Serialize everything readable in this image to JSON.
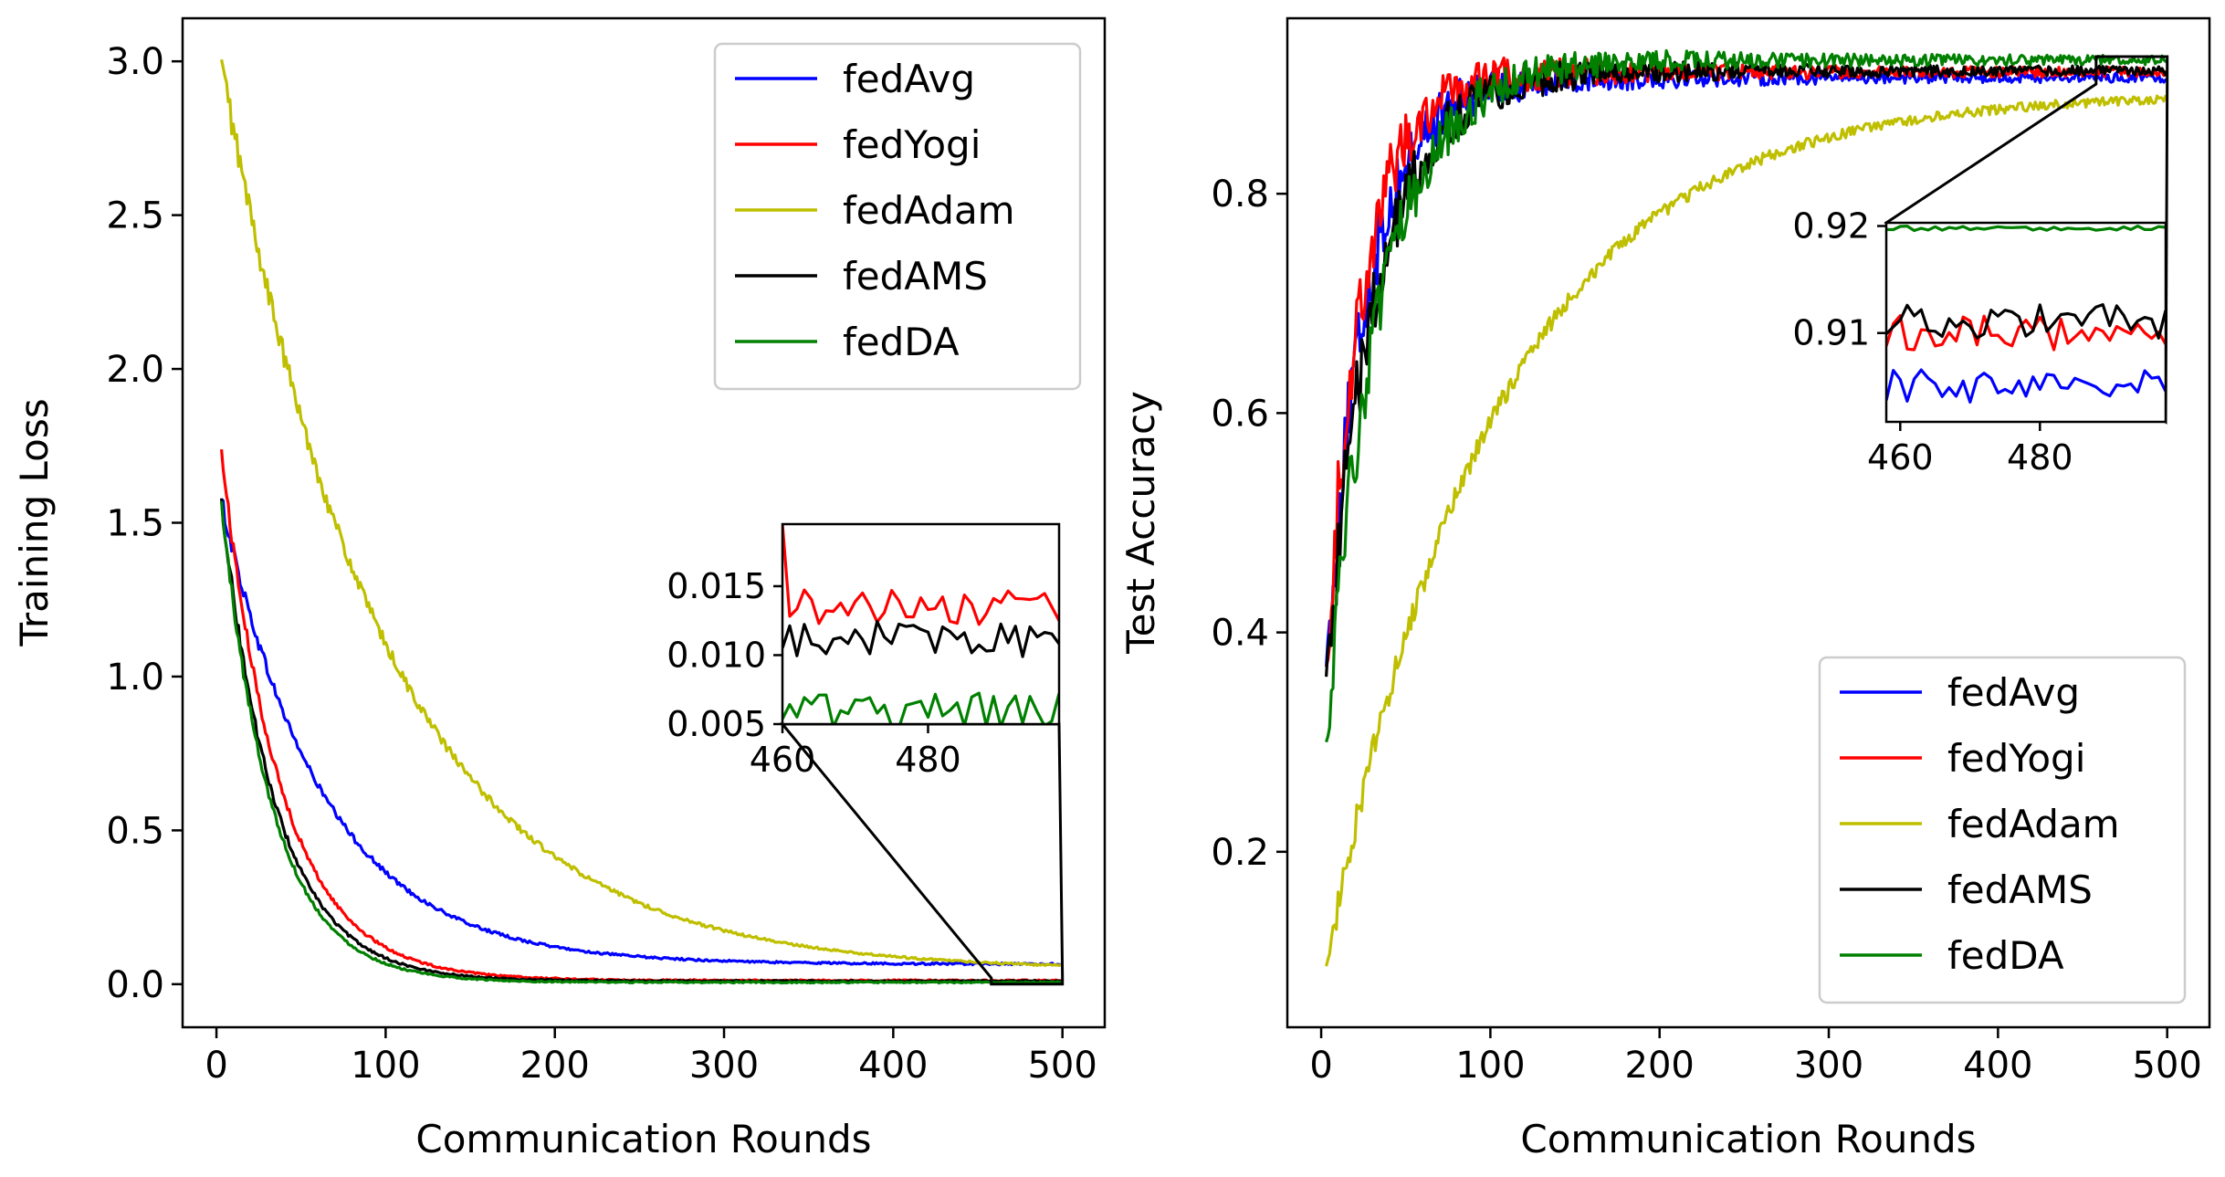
{
  "chart_data": [
    {
      "type": "line",
      "xlabel": "Communication Rounds",
      "ylabel": "Training Loss",
      "xlim": [
        -20,
        525
      ],
      "ylim": [
        -0.14,
        3.14
      ],
      "xticks": [
        "0",
        "100",
        "200",
        "300",
        "400",
        "500"
      ],
      "yticks": [
        "0.0",
        "0.5",
        "1.0",
        "1.5",
        "2.0",
        "2.5",
        "3.0"
      ],
      "legend_position": "top-right",
      "x_range": [
        3,
        500
      ],
      "series": [
        {
          "name": "fedAvg",
          "color": "#0000ff",
          "start": 1.57,
          "end": 0.065,
          "tau": 60
        },
        {
          "name": "fedYogi",
          "color": "#ff0000",
          "start": 1.73,
          "end": 0.012,
          "tau": 35
        },
        {
          "name": "fedAdam",
          "color": "#bfbf00",
          "start": 2.99,
          "end": 0.045,
          "tau": 95
        },
        {
          "name": "fedAMS",
          "color": "#000000",
          "start": 1.57,
          "end": 0.01,
          "tau": 32
        },
        {
          "name": "fedDA",
          "color": "#008000",
          "start": 1.56,
          "end": 0.006,
          "tau": 30
        }
      ],
      "inset": {
        "xlim": [
          460,
          498
        ],
        "ylim": [
          0.005,
          0.0195
        ],
        "xticks": [
          "460",
          "480"
        ],
        "yticks": [
          "0.005",
          "0.010",
          "0.015"
        ],
        "zoom_region": {
          "x": [
            458,
            500
          ],
          "y": [
            0.0,
            0.02
          ]
        },
        "series_levels": {
          "fedYogi": 0.0135,
          "fedAMS": 0.0112,
          "fedDA": 0.006
        }
      }
    },
    {
      "type": "line",
      "xlabel": "Communication Rounds",
      "ylabel": "Test Accuracy",
      "xlim": [
        -20,
        525
      ],
      "ylim": [
        0.04,
        0.96
      ],
      "xticks": [
        "0",
        "100",
        "200",
        "300",
        "400",
        "500"
      ],
      "yticks": [
        "0.2",
        "0.4",
        "0.6",
        "0.8"
      ],
      "legend_position": "bottom-right",
      "x_range": [
        3,
        500
      ],
      "series": [
        {
          "name": "fedAvg",
          "color": "#0000ff",
          "start": 0.38,
          "end": 0.906,
          "tau": 25
        },
        {
          "name": "fedYogi",
          "color": "#ff0000",
          "start": 0.38,
          "end": 0.911,
          "tau": 22
        },
        {
          "name": "fedAdam",
          "color": "#bfbf00",
          "start": 0.1,
          "end": 0.892,
          "tau": 100
        },
        {
          "name": "fedAMS",
          "color": "#000000",
          "start": 0.37,
          "end": 0.912,
          "tau": 30
        },
        {
          "name": "fedDA",
          "color": "#008000",
          "start": 0.31,
          "end": 0.922,
          "tau": 32
        }
      ],
      "inset": {
        "xlim": [
          458,
          498
        ],
        "ylim": [
          0.9017,
          0.9203
        ],
        "xticks": [
          "460",
          "480"
        ],
        "yticks": [
          "0.91",
          "0.92"
        ],
        "zoom_region": {
          "x": [
            458,
            500
          ],
          "y": [
            0.9,
            0.925
          ]
        },
        "series_levels": {
          "fedAvg": 0.905,
          "fedYogi": 0.91,
          "fedAMS": 0.911,
          "fedDA": 0.9198
        }
      }
    }
  ]
}
